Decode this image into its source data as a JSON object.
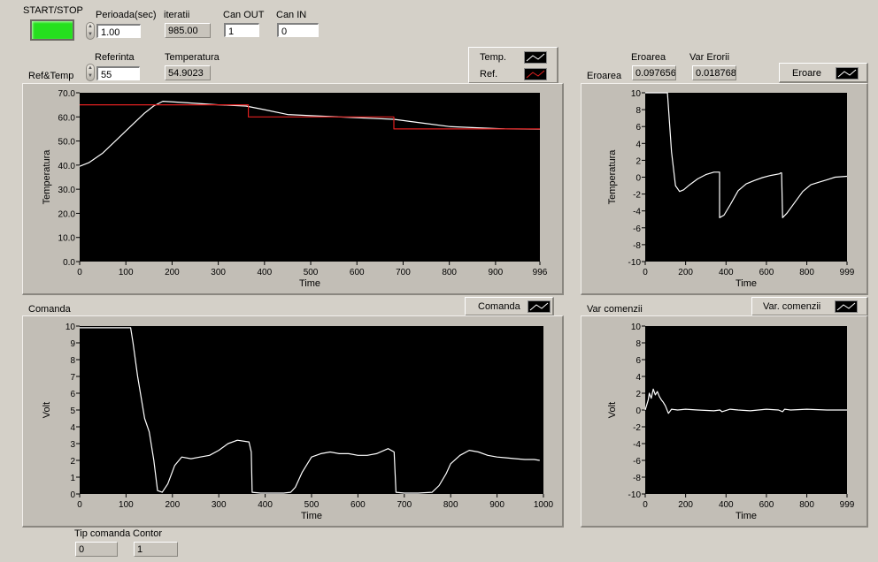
{
  "controls": {
    "start_stop_label": "START/STOP",
    "perioada_label": "Perioada(sec)",
    "perioada_value": "1.00",
    "iteratii_label": "iteratii",
    "iteratii_value": "985.00",
    "can_out_label": "Can OUT",
    "can_out_value": "1",
    "can_in_label": "Can IN",
    "can_in_value": "0",
    "ref_temp_label": "Ref&Temp",
    "referinta_label": "Referinta",
    "referinta_value": "55",
    "temperatura_label": "Temperatura",
    "temperatura_value": "54.9023",
    "eroarea_label": "Eroarea",
    "eroarea_value": "0.097656",
    "var_erorii_label": "Var Erorii",
    "var_erorii_value": "0.018768",
    "comanda_section_label": "Comanda",
    "var_comenzii_section_label": "Var comenzii",
    "eroarea_section_label": "Eroarea",
    "tip_comanda_label": "Tip comanda",
    "tip_comanda_value": "0",
    "contor_label": "Contor",
    "contor_value": "1"
  },
  "colors": {
    "plot_bg": "#000000",
    "trace_white": "#ffffff",
    "trace_red": "#e02020",
    "led_green": "#25e01e",
    "panel_bg": "#c2beb6"
  },
  "icons": {
    "spinner": "up-down-arrows-icon",
    "led": "led-indicator-icon"
  },
  "chart_data": [
    {
      "id": "temp",
      "type": "line",
      "xlabel": "Time",
      "ylabel": "Temperatura",
      "xlim": [
        0,
        996
      ],
      "ylim": [
        0,
        70
      ],
      "xticks": [
        "0",
        "100",
        "200",
        "300",
        "400",
        "500",
        "600",
        "700",
        "800",
        "900",
        "996"
      ],
      "xtick_values": [
        0,
        100,
        200,
        300,
        400,
        500,
        600,
        700,
        800,
        900,
        996
      ],
      "yticks": [
        "0.0",
        "10.0",
        "20.0",
        "30.0",
        "40.0",
        "50.0",
        "60.0",
        "70.0"
      ],
      "ytick_values": [
        0,
        10,
        20,
        30,
        40,
        50,
        60,
        70
      ],
      "legend_position": "top-right",
      "series": [
        {
          "name": "Temp.",
          "color": "#ffffff",
          "x": [
            0,
            20,
            50,
            80,
            110,
            140,
            160,
            180,
            220,
            300,
            360,
            400,
            450,
            500,
            560,
            620,
            680,
            740,
            800,
            860,
            920,
            996
          ],
          "y": [
            39.5,
            41,
            45,
            50.5,
            56,
            61.5,
            64.5,
            66.5,
            66,
            65,
            64.5,
            63,
            61,
            60.5,
            60,
            59.5,
            59,
            57.5,
            56,
            55.5,
            55,
            54.9
          ]
        },
        {
          "name": "Ref.",
          "color": "#e02020",
          "x": [
            0,
            365,
            365,
            680,
            680,
            996
          ],
          "y": [
            65,
            65,
            60,
            60,
            55,
            55
          ]
        }
      ]
    },
    {
      "id": "eroare",
      "type": "line",
      "xlabel": "Time",
      "ylabel": "Temperatura",
      "xlim": [
        0,
        999
      ],
      "ylim": [
        -10,
        10
      ],
      "xticks": [
        "0",
        "200",
        "400",
        "600",
        "800",
        "999"
      ],
      "xtick_values": [
        0,
        200,
        400,
        600,
        800,
        999
      ],
      "yticks": [
        "-10",
        "-8",
        "-6",
        "-4",
        "-2",
        "0",
        "2",
        "4",
        "6",
        "8",
        "10"
      ],
      "ytick_values": [
        -10,
        -8,
        -6,
        -4,
        -2,
        0,
        2,
        4,
        6,
        8,
        10
      ],
      "legend_position": "top-right",
      "series": [
        {
          "name": "Eroare",
          "color": "#ffffff",
          "x": [
            0,
            110,
            130,
            150,
            170,
            190,
            220,
            260,
            300,
            340,
            368,
            368,
            390,
            420,
            460,
            500,
            540,
            580,
            620,
            665,
            670,
            675,
            680,
            700,
            740,
            780,
            820,
            860,
            900,
            940,
            999
          ],
          "y": [
            10,
            10,
            3,
            -1,
            -1.7,
            -1.5,
            -0.9,
            -0.2,
            0.3,
            0.6,
            0.6,
            -4.8,
            -4.5,
            -3.3,
            -1.6,
            -0.8,
            -0.4,
            -0.05,
            0.2,
            0.4,
            0.5,
            0.5,
            -4.8,
            -4.3,
            -3,
            -1.7,
            -0.9,
            -0.6,
            -0.3,
            0.0,
            0.1
          ]
        }
      ]
    },
    {
      "id": "comanda",
      "type": "line",
      "xlabel": "Time",
      "ylabel": "Volt",
      "xlim": [
        0,
        1000
      ],
      "ylim": [
        0,
        10
      ],
      "xticks": [
        "0",
        "100",
        "200",
        "300",
        "400",
        "500",
        "600",
        "700",
        "800",
        "900",
        "1000"
      ],
      "xtick_values": [
        0,
        100,
        200,
        300,
        400,
        500,
        600,
        700,
        800,
        900,
        1000
      ],
      "yticks": [
        "0",
        "1",
        "2",
        "3",
        "4",
        "5",
        "6",
        "7",
        "8",
        "9",
        "10"
      ],
      "ytick_values": [
        0,
        1,
        2,
        3,
        4,
        5,
        6,
        7,
        8,
        9,
        10
      ],
      "legend_position": "top-right",
      "series": [
        {
          "name": "Comanda",
          "color": "#ffffff",
          "x": [
            0,
            110,
            115,
            125,
            140,
            150,
            160,
            168,
            178,
            190,
            205,
            220,
            240,
            260,
            280,
            300,
            320,
            340,
            365,
            370,
            372,
            390,
            420,
            440,
            455,
            465,
            480,
            500,
            520,
            540,
            560,
            580,
            600,
            620,
            640,
            665,
            678,
            682,
            700,
            730,
            760,
            775,
            790,
            800,
            820,
            840,
            860,
            880,
            900,
            920,
            940,
            960,
            980,
            992
          ],
          "y": [
            9.9,
            9.9,
            9,
            7,
            4.5,
            3.7,
            2,
            0.2,
            0.1,
            0.6,
            1.7,
            2.2,
            2.1,
            2.2,
            2.3,
            2.6,
            3,
            3.2,
            3.1,
            2.5,
            0.1,
            0.05,
            0.05,
            0.05,
            0.1,
            0.4,
            1.3,
            2.2,
            2.4,
            2.5,
            2.4,
            2.4,
            2.3,
            2.3,
            2.4,
            2.7,
            2.5,
            0.1,
            0.05,
            0.05,
            0.1,
            0.5,
            1.2,
            1.8,
            2.3,
            2.6,
            2.5,
            2.3,
            2.2,
            2.15,
            2.1,
            2.05,
            2.05,
            2.0
          ]
        }
      ]
    },
    {
      "id": "varcom",
      "type": "line",
      "xlabel": "Time",
      "ylabel": "Volt",
      "xlim": [
        0,
        999
      ],
      "ylim": [
        -10,
        10
      ],
      "xticks": [
        "0",
        "200",
        "400",
        "600",
        "800",
        "999"
      ],
      "xtick_values": [
        0,
        200,
        400,
        600,
        800,
        999
      ],
      "yticks": [
        "-10",
        "-8",
        "-6",
        "-4",
        "-2",
        "0",
        "2",
        "4",
        "6",
        "8",
        "10"
      ],
      "ytick_values": [
        -10,
        -8,
        -6,
        -4,
        -2,
        0,
        2,
        4,
        6,
        8,
        10
      ],
      "legend_position": "top-right",
      "series": [
        {
          "name": "Var. comenzii",
          "color": "#ffffff",
          "x": [
            0,
            15,
            20,
            30,
            40,
            50,
            60,
            70,
            80,
            90,
            100,
            115,
            130,
            160,
            200,
            260,
            340,
            370,
            380,
            420,
            460,
            520,
            600,
            660,
            680,
            690,
            720,
            800,
            900,
            999
          ],
          "y": [
            0,
            1.2,
            2.0,
            1.4,
            2.5,
            1.8,
            2.2,
            1.6,
            1.2,
            0.9,
            0.5,
            -0.4,
            0.1,
            0.0,
            0.1,
            0.0,
            -0.1,
            0.0,
            -0.2,
            0.1,
            0.0,
            -0.1,
            0.1,
            0.0,
            -0.2,
            0.1,
            0.0,
            0.1,
            0.0,
            0.0
          ]
        }
      ]
    }
  ]
}
